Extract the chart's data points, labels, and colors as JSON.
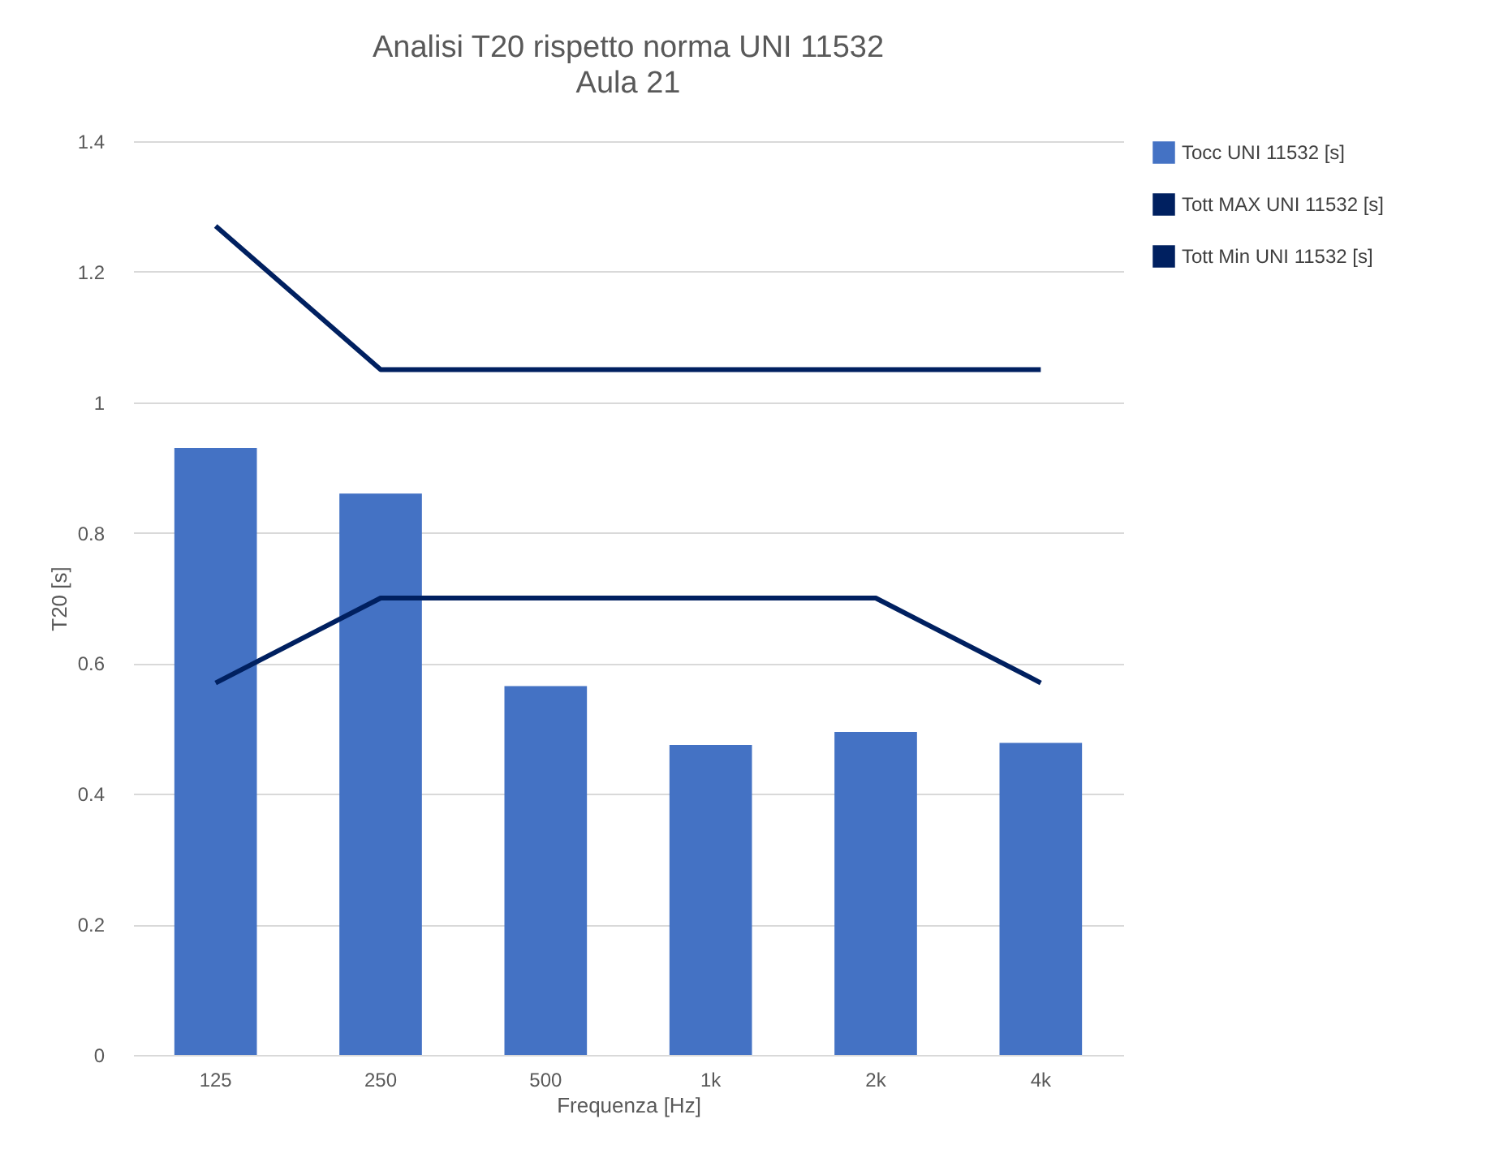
{
  "chart_data": {
    "type": "bar",
    "title": "Analisi T20 rispetto norma UNI 11532",
    "subtitle": "Aula 21",
    "xlabel": "Frequenza [Hz]",
    "ylabel": "T20 [s]",
    "categories": [
      "125",
      "250",
      "500",
      "1k",
      "2k",
      "4k"
    ],
    "series": [
      {
        "name": "Tocc UNI 11532 [s]",
        "color": "#4472c4",
        "values": [
          0.93,
          0.86,
          0.565,
          0.475,
          0.495,
          0.478
        ]
      },
      {
        "name": "Tott MAX UNI 11532 [s]",
        "type": "line",
        "color": "#002060",
        "values": [
          1.27,
          1.05,
          1.05,
          1.05,
          1.05,
          1.05
        ]
      },
      {
        "name": "Tott Min UNI 11532 [s]",
        "type": "line",
        "color": "#002060",
        "values": [
          0.57,
          0.7,
          0.7,
          0.7,
          0.7,
          0.57
        ]
      }
    ],
    "ylim": [
      0,
      1.4
    ],
    "yticks": [
      0,
      0.2,
      0.4,
      0.6,
      0.8,
      1,
      1.2,
      1.4
    ],
    "grid": "y",
    "legend": "right"
  }
}
